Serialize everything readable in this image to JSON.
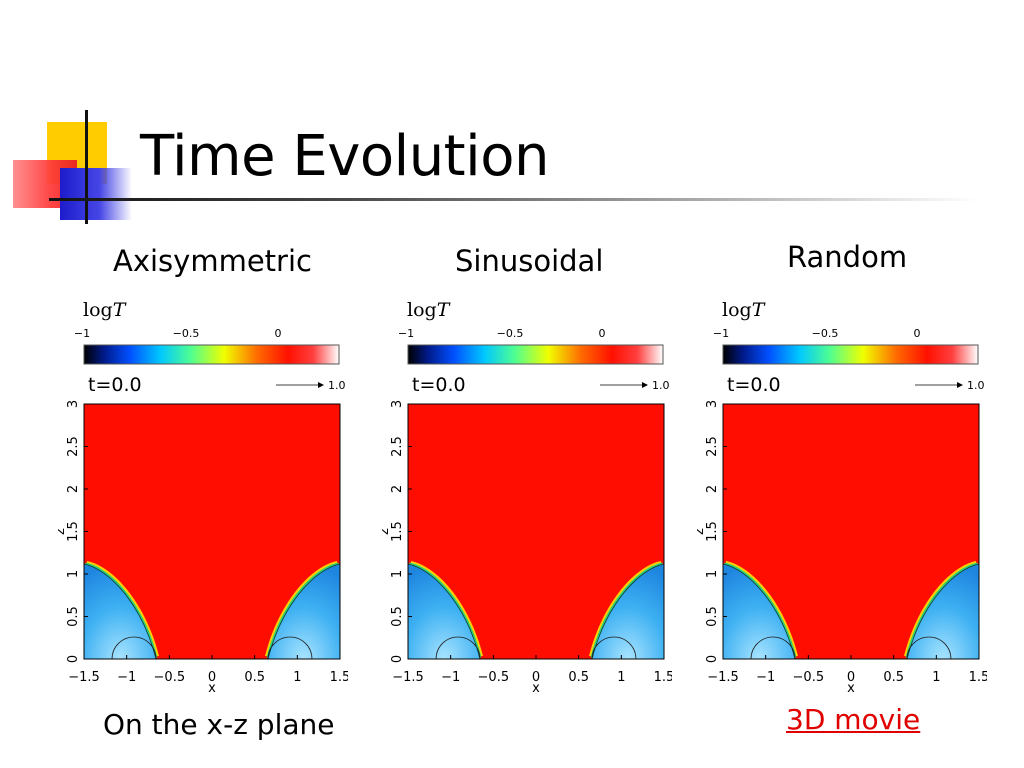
{
  "slide": {
    "title": "Time Evolution",
    "caption": "On the x-z plane",
    "movie_link": "3D movie"
  },
  "panels": [
    {
      "heading": "Axisymmetric"
    },
    {
      "heading": "Sinusoidal"
    },
    {
      "heading": "Random"
    }
  ],
  "plot": {
    "colorbar_label_prefix": "log",
    "colorbar_label_var": "T",
    "colorbar_ticks": [
      "−1",
      "−0.5",
      "0"
    ],
    "time_label": "t=0.0",
    "arrow_label": "1.0",
    "z_axis_label": "z",
    "x_axis_label": "x",
    "z_ticks": [
      "0",
      "0.5",
      "1",
      "1.5",
      "2",
      "2.5",
      "3"
    ],
    "x_ticks": [
      "−1.5",
      "−1",
      "−0.5",
      "0",
      "0.5",
      "1",
      "1.5"
    ],
    "hot_color": "#ff0d00",
    "cool_color": "#2aa8f0"
  }
}
